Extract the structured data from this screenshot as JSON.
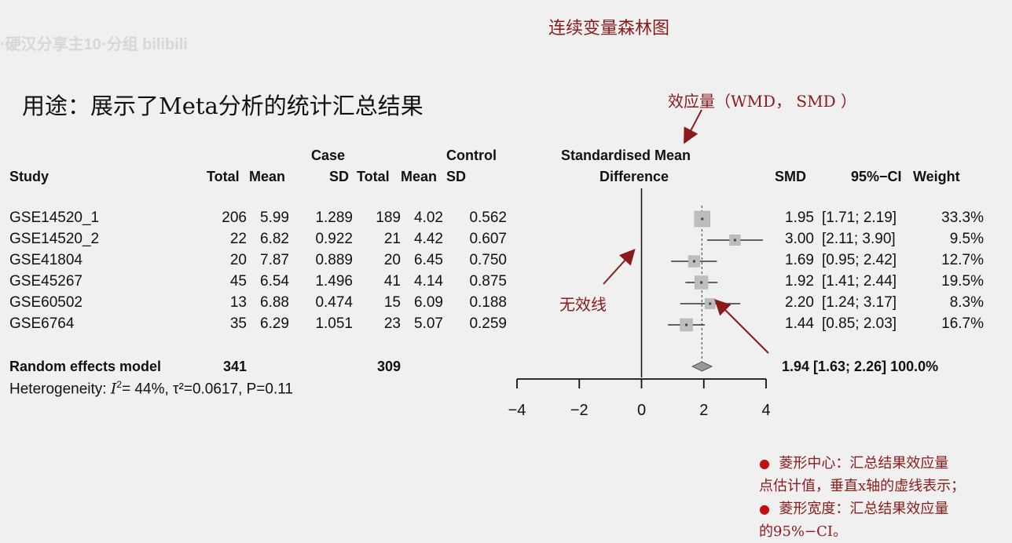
{
  "watermark": "·硬汉分享主10·分组 bilibili",
  "slide_title": "连续变量森林图",
  "usage_text": "用途：展示了Meta分析的统计汇总结果",
  "annotations": {
    "effect_size": "效应量（WMD， SMD ）",
    "no_effect_line": "无效线"
  },
  "table_headers": {
    "study": "Study",
    "case": "Case",
    "control": "Control",
    "total": "Total",
    "mean": "Mean",
    "sd": "SD",
    "smd_title_line1": "Standardised Mean",
    "smd_title_line2": "Difference",
    "smd": "SMD",
    "ci": "95%−CI",
    "weight": "Weight"
  },
  "studies": [
    {
      "name": "GSE14520_1",
      "case_total": "206",
      "case_mean": "5.99",
      "case_sd": "1.289",
      "ctrl_total": "189",
      "ctrl_mean": "4.02",
      "ctrl_sd": "0.562",
      "smd": "1.95",
      "ci": "[1.71; 2.19]",
      "weight": "33.3%"
    },
    {
      "name": "GSE14520_2",
      "case_total": "22",
      "case_mean": "6.82",
      "case_sd": "0.922",
      "ctrl_total": "21",
      "ctrl_mean": "4.42",
      "ctrl_sd": "0.607",
      "smd": "3.00",
      "ci": "[2.11; 3.90]",
      "weight": "9.5%"
    },
    {
      "name": "GSE41804",
      "case_total": "20",
      "case_mean": "7.87",
      "case_sd": "0.889",
      "ctrl_total": "20",
      "ctrl_mean": "6.45",
      "ctrl_sd": "0.750",
      "smd": "1.69",
      "ci": "[0.95; 2.42]",
      "weight": "12.7%"
    },
    {
      "name": "GSE45267",
      "case_total": "45",
      "case_mean": "6.54",
      "case_sd": "1.496",
      "ctrl_total": "41",
      "ctrl_mean": "4.14",
      "ctrl_sd": "0.875",
      "smd": "1.92",
      "ci": "[1.41; 2.44]",
      "weight": "19.5%"
    },
    {
      "name": "GSE60502",
      "case_total": "13",
      "case_mean": "6.88",
      "case_sd": "0.474",
      "ctrl_total": "15",
      "ctrl_mean": "6.09",
      "ctrl_sd": "0.188",
      "smd": "2.20",
      "ci": "[1.24; 3.17]",
      "weight": "8.3%"
    },
    {
      "name": "GSE6764",
      "case_total": "35",
      "case_mean": "6.29",
      "case_sd": "1.051",
      "ctrl_total": "23",
      "ctrl_mean": "5.07",
      "ctrl_sd": "0.259",
      "smd": "1.44",
      "ci": "[0.85; 2.03]",
      "weight": "16.7%"
    }
  ],
  "summary": {
    "label": "Random effects model",
    "case_total": "341",
    "ctrl_total": "309",
    "result": "1.94 [1.63; 2.26] 100.0%",
    "heterogeneity_prefix": "Heterogeneity: ",
    "heterogeneity_rest": "= 44%, τ²=0.0617, P=0.11"
  },
  "notes": [
    "菱形中心：汇总结果效应量",
    "点估计值，垂直x轴的虚线表示；",
    "菱形宽度：汇总结果效应量",
    "的95%−CI。"
  ],
  "chart_data": {
    "type": "forest",
    "xlim": [
      -4,
      4
    ],
    "xticks": [
      -4,
      -2,
      0,
      2,
      4
    ],
    "tick_labels": [
      "−4",
      "−2",
      "0",
      "2",
      "4"
    ],
    "null_line": 0,
    "points": [
      {
        "study": "GSE14520_1",
        "est": 1.95,
        "lo": 1.71,
        "hi": 2.19,
        "weight": 33.3
      },
      {
        "study": "GSE14520_2",
        "est": 3.0,
        "lo": 2.11,
        "hi": 3.9,
        "weight": 9.5
      },
      {
        "study": "GSE41804",
        "est": 1.69,
        "lo": 0.95,
        "hi": 2.42,
        "weight": 12.7
      },
      {
        "study": "GSE45267",
        "est": 1.92,
        "lo": 1.41,
        "hi": 2.44,
        "weight": 19.5
      },
      {
        "study": "GSE60502",
        "est": 2.2,
        "lo": 1.24,
        "hi": 3.17,
        "weight": 8.3
      },
      {
        "study": "GSE6764",
        "est": 1.44,
        "lo": 0.85,
        "hi": 2.03,
        "weight": 16.7
      }
    ],
    "pooled": {
      "est": 1.94,
      "lo": 1.63,
      "hi": 2.26
    }
  }
}
